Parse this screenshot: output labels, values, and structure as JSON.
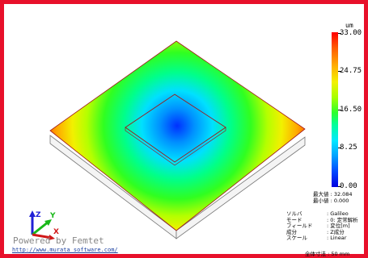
{
  "colors": {
    "frame": "#e8102a",
    "max": "#ff0000",
    "min": "#0000e0",
    "link": "#1a3fa0"
  },
  "legend": {
    "unit": "um",
    "ticks": [
      {
        "label": "33.00",
        "value": 33.0
      },
      {
        "label": "24.75",
        "value": 24.75
      },
      {
        "label": "16.50",
        "value": 16.5
      },
      {
        "label": "8.25",
        "value": 8.25
      },
      {
        "label": "0.00",
        "value": 0.0
      }
    ],
    "range": [
      0,
      33
    ]
  },
  "stats": {
    "max_label": "最大値 : 32.084",
    "min_label": "最小値 : 0.000"
  },
  "info": [
    {
      "key": "ソルバ",
      "value": ": Galileo"
    },
    {
      "key": "モード",
      "value": ": 0: 定常解析"
    },
    {
      "key": "フィールド",
      "value": ": 変位[m]"
    },
    {
      "key": "成分",
      "value": ": Z成分"
    },
    {
      "key": "スケール",
      "value": ": Linear"
    }
  ],
  "scale_text": "全体寸法 : 50 mm",
  "axes": {
    "x": "X",
    "y": "Y",
    "z": "Z"
  },
  "branding": {
    "powered": "Powered by Femtet",
    "url": "http://www.murata software.com/"
  },
  "icons": {
    "axes": "xyz-triad-icon"
  }
}
